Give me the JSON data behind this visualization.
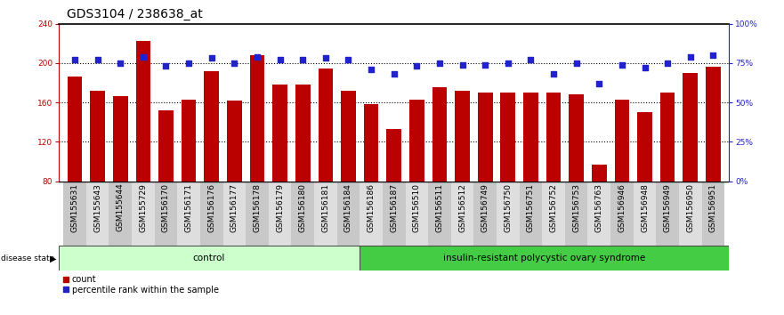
{
  "title": "GDS3104 / 238638_at",
  "samples": [
    "GSM155631",
    "GSM155643",
    "GSM155644",
    "GSM155729",
    "GSM156170",
    "GSM156171",
    "GSM156176",
    "GSM156177",
    "GSM156178",
    "GSM156179",
    "GSM156180",
    "GSM156181",
    "GSM156184",
    "GSM156186",
    "GSM156187",
    "GSM156510",
    "GSM156511",
    "GSM156512",
    "GSM156749",
    "GSM156750",
    "GSM156751",
    "GSM156752",
    "GSM156753",
    "GSM156763",
    "GSM156946",
    "GSM156948",
    "GSM156949",
    "GSM156950",
    "GSM156951"
  ],
  "bar_values": [
    186,
    172,
    166,
    222,
    152,
    163,
    192,
    162,
    208,
    178,
    178,
    194,
    172,
    158,
    133,
    163,
    175,
    172,
    170,
    170,
    170,
    170,
    168,
    97,
    163,
    150,
    170,
    190,
    196
  ],
  "percentile_values": [
    77,
    77,
    75,
    79,
    73,
    75,
    78,
    75,
    79,
    77,
    77,
    78,
    77,
    71,
    68,
    73,
    75,
    74,
    74,
    75,
    77,
    68,
    75,
    62,
    74,
    72,
    75,
    79,
    80
  ],
  "control_count": 13,
  "disease_count": 16,
  "group_labels": [
    "control",
    "insulin-resistant polycystic ovary syndrome"
  ],
  "bar_color": "#bb0000",
  "percentile_color": "#2222cc",
  "control_bg": "#ccffcc",
  "disease_bg": "#44cc44",
  "ylim_left": [
    80,
    240
  ],
  "ylim_right": [
    0,
    100
  ],
  "yticks_left": [
    80,
    120,
    160,
    200,
    240
  ],
  "yticks_right": [
    0,
    25,
    50,
    75,
    100
  ],
  "hlines": [
    120,
    160,
    200
  ],
  "title_fontsize": 10,
  "tick_fontsize": 6.5,
  "bar_width": 0.65
}
